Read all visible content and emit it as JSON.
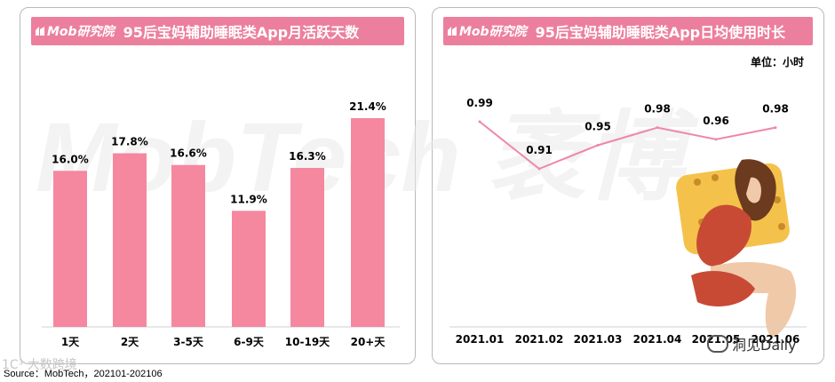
{
  "brand": "Mob研究院",
  "left_title": "95后宝妈辅助睡眠类App月活跃天数",
  "right_title": "95后宝妈辅助睡眠类App日均使用时长",
  "right_unit": "单位：小时",
  "source": "Source：MobTech，202101-202106",
  "watermark_text": "MobTech 袤博",
  "watermark_bottom": "1C³ 大数跨境",
  "watermark_wechat": "洞见Daily",
  "colors": {
    "bar": "#f5879f",
    "line": "#ee87a9",
    "title_bg": "#ec7f9d"
  },
  "chart_data": [
    {
      "type": "bar",
      "title": "95后宝妈辅助睡眠类App月活跃天数",
      "categories": [
        "1天",
        "2天",
        "3-5天",
        "6-9天",
        "10-19天",
        "20+天"
      ],
      "values": [
        16.0,
        17.8,
        16.6,
        11.9,
        16.3,
        21.4
      ],
      "value_labels": [
        "16.0%",
        "17.8%",
        "16.6%",
        "11.9%",
        "16.3%",
        "21.4%"
      ],
      "ylim": [
        0,
        21.4
      ]
    },
    {
      "type": "line",
      "title": "95后宝妈辅助睡眠类App日均使用时长",
      "ylabel": "单位：小时",
      "categories": [
        "2021.01",
        "2021.02",
        "2021.03",
        "2021.04",
        "2021.05",
        "2021.06"
      ],
      "values": [
        0.99,
        0.91,
        0.95,
        0.98,
        0.96,
        0.98
      ],
      "value_labels": [
        "0.99",
        "0.91",
        "0.95",
        "0.98",
        "0.96",
        "0.98"
      ]
    }
  ]
}
